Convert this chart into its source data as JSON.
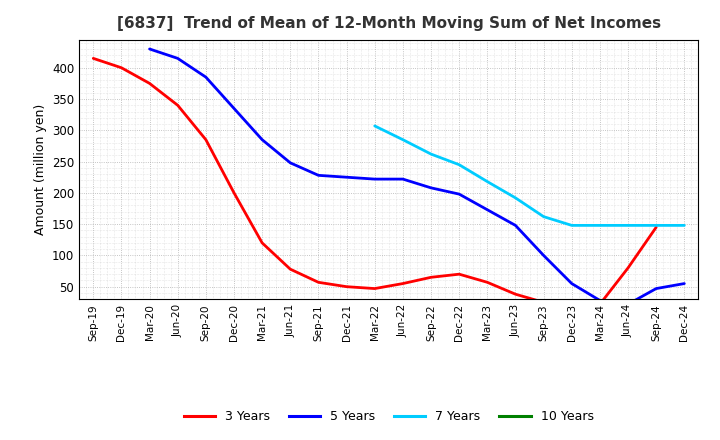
{
  "title": "[6837]  Trend of Mean of 12-Month Moving Sum of Net Incomes",
  "ylabel": "Amount (million yen)",
  "background_color": "#ffffff",
  "grid_color": "#aaaaaa",
  "plot_bg_color": "#ffffff",
  "x_labels": [
    "Sep-19",
    "Dec-19",
    "Mar-20",
    "Jun-20",
    "Sep-20",
    "Dec-20",
    "Mar-21",
    "Jun-21",
    "Sep-21",
    "Dec-21",
    "Mar-22",
    "Jun-22",
    "Sep-22",
    "Dec-22",
    "Mar-23",
    "Jun-23",
    "Sep-23",
    "Dec-23",
    "Mar-24",
    "Jun-24",
    "Sep-24",
    "Dec-24"
  ],
  "ylim": [
    30,
    445
  ],
  "yticks": [
    50,
    100,
    150,
    200,
    250,
    300,
    350,
    400
  ],
  "series": {
    "3 Years": {
      "color": "#ff0000",
      "x_indices": [
        0,
        1,
        2,
        3,
        4,
        5,
        6,
        7,
        8,
        9,
        10,
        11,
        12,
        13,
        14,
        15,
        16,
        17,
        18,
        19,
        20
      ],
      "values": [
        415,
        400,
        375,
        340,
        285,
        200,
        120,
        78,
        57,
        50,
        47,
        55,
        65,
        70,
        57,
        38,
        25,
        22,
        22,
        80,
        145
      ]
    },
    "5 Years": {
      "color": "#0000ff",
      "x_indices": [
        2,
        3,
        4,
        5,
        6,
        7,
        8,
        9,
        10,
        11,
        12,
        13,
        14,
        15,
        16,
        17,
        18,
        19,
        20,
        21
      ],
      "values": [
        430,
        415,
        385,
        335,
        285,
        248,
        228,
        225,
        222,
        222,
        208,
        198,
        173,
        148,
        100,
        55,
        28,
        22,
        47,
        55
      ]
    },
    "7 Years": {
      "color": "#00ccff",
      "x_indices": [
        10,
        11,
        12,
        13,
        14,
        15,
        16,
        17,
        18,
        19,
        20,
        21
      ],
      "values": [
        307,
        285,
        262,
        245,
        218,
        192,
        162,
        148,
        148,
        148,
        148,
        148
      ]
    },
    "10 Years": {
      "color": "#008000",
      "x_indices": [],
      "values": []
    }
  },
  "legend": {
    "labels": [
      "3 Years",
      "5 Years",
      "7 Years",
      "10 Years"
    ],
    "colors": [
      "#ff0000",
      "#0000ff",
      "#00ccff",
      "#008000"
    ]
  }
}
